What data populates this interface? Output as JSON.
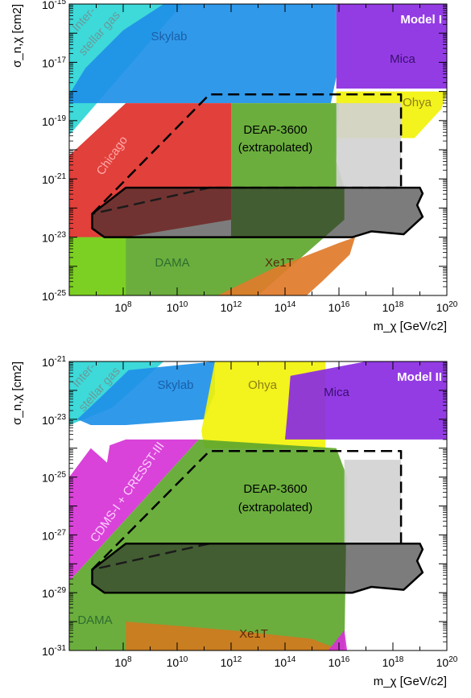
{
  "chart_data": [
    {
      "type": "area",
      "title": "Model I",
      "xlabel": "m_χ [GeV/c²]",
      "ylabel": "σ_n,χ [cm²]",
      "xscale": "log",
      "yscale": "log",
      "xlim": [
        1000000.0,
        1e+20
      ],
      "ylim": [
        1e-25,
        1e-15
      ],
      "x_tick_labels": [
        "10^8",
        "10^10",
        "10^12",
        "10^14",
        "10^16",
        "10^18",
        "10^20"
      ],
      "y_tick_labels": [
        "10^-25",
        "10^-23",
        "10^-21",
        "10^-19",
        "10^-17",
        "10^-15"
      ],
      "regions": [
        {
          "name": "Inter-stellar gas",
          "label_lines": [
            "Inter-",
            "stellar gas"
          ],
          "color": "#2ed6d6",
          "points": [
            [
              6,
              -16.5
            ],
            [
              6,
              -15
            ],
            [
              10.2,
              -15
            ],
            [
              6,
              -19.5
            ],
            [
              6,
              -18
            ]
          ]
        },
        {
          "name": "Skylab",
          "color": "#1e90e8",
          "points": [
            [
              6,
              -18.1
            ],
            [
              6.6,
              -17.2
            ],
            [
              8,
              -15.9
            ],
            [
              9.5,
              -15
            ],
            [
              15.9,
              -15
            ],
            [
              15.9,
              -17.4
            ],
            [
              15.9,
              -17.5
            ],
            [
              15.7,
              -18.4
            ],
            [
              6,
              -18.4
            ]
          ]
        },
        {
          "name": "Mica",
          "color": "#8a2be2",
          "points": [
            [
              15.9,
              -15
            ],
            [
              20,
              -15
            ],
            [
              20,
              -17.9
            ],
            [
              15.9,
              -17.9
            ]
          ]
        },
        {
          "name": "Ohya",
          "color": "#f2f20a",
          "points": [
            [
              15.9,
              -18.0
            ],
            [
              20,
              -18.0
            ],
            [
              19.8,
              -18.6
            ],
            [
              18.8,
              -19.6
            ],
            [
              15.9,
              -19.6
            ]
          ]
        },
        {
          "name": "Chicago",
          "color": "#e0302a",
          "points": [
            [
              6,
              -23
            ],
            [
              6,
              -20.2
            ],
            [
              8.1,
              -18.4
            ],
            [
              12,
              -18.4
            ],
            [
              12,
              -22.4
            ],
            [
              8.1,
              -23
            ]
          ]
        },
        {
          "name": "DEAP-3600 (extrapolated)",
          "label_lines": [
            "DEAP-3600",
            "(extrapolated)"
          ],
          "color": "#5ea72e",
          "points": [
            [
              6,
              -23
            ],
            [
              6,
              -25
            ],
            [
              13,
              -25
            ],
            [
              16.2,
              -22.4
            ],
            [
              16.2,
              -21.3
            ],
            [
              15.9,
              -20.4
            ],
            [
              16.0,
              -18.4
            ],
            [
              12,
              -18.4
            ],
            [
              12,
              -23
            ]
          ]
        },
        {
          "name": "DAMA",
          "color": "#7ed321",
          "points": [
            [
              6,
              -23
            ],
            [
              8.1,
              -23
            ],
            [
              8.1,
              -25
            ],
            [
              6,
              -25
            ]
          ]
        },
        {
          "name": "Xe1T",
          "color": "#e07b2a",
          "points": [
            [
              11.5,
              -25
            ],
            [
              13.5,
              -24.1
            ],
            [
              16.0,
              -23.2
            ],
            [
              16.6,
              -23.0
            ],
            [
              16.4,
              -23.6
            ],
            [
              15.4,
              -24.5
            ],
            [
              14.8,
              -25
            ]
          ]
        },
        {
          "name": "light-grey",
          "color": "#d3d3d3",
          "points": [
            [
              15.9,
              -18.4
            ],
            [
              18.3,
              -18.4
            ],
            [
              18.3,
              -21.3
            ],
            [
              15.9,
              -21.3
            ]
          ]
        }
      ],
      "outlines": [
        {
          "name": "DEAP-3600 (extrapolated)",
          "style": "dashed",
          "points": [
            [
              6.85,
              -22.2
            ],
            [
              11.2,
              -18.1
            ],
            [
              18.3,
              -18.1
            ],
            [
              18.3,
              -21.3
            ],
            [
              11.2,
              -21.3
            ]
          ]
        },
        {
          "name": "DEAP-3600",
          "style": "solid",
          "fill": "#2b2b2b",
          "points": [
            [
              6.85,
              -22.2
            ],
            [
              8.1,
              -21.3
            ],
            [
              19.0,
              -21.3
            ],
            [
              19.1,
              -21.5
            ],
            [
              18.9,
              -21.9
            ],
            [
              19.1,
              -22.3
            ],
            [
              18.4,
              -22.9
            ],
            [
              17.2,
              -22.8
            ],
            [
              16.5,
              -23.0
            ],
            [
              7.3,
              -23.0
            ],
            [
              6.85,
              -22.7
            ]
          ]
        }
      ],
      "labels": [
        {
          "text": "Skylab",
          "color": "#1a5fa8"
        },
        {
          "text": "Mica",
          "color": "#3a0f6e"
        },
        {
          "text": "Ohya",
          "color": "#8c7f16"
        },
        {
          "text": "Chicago",
          "color": "#ffaaaa"
        },
        {
          "text": "DEAP-3600",
          "color": "#000000"
        },
        {
          "text": "(extrapolated)",
          "color": "#000000"
        },
        {
          "text": "DAMA",
          "color": "#2e6e2e"
        },
        {
          "text": "Xe1T",
          "color": "#5a2a08"
        }
      ]
    },
    {
      "type": "area",
      "title": "Model II",
      "xlabel": "m_χ [GeV/c²]",
      "ylabel": "σ_n,χ [cm²]",
      "xscale": "log",
      "yscale": "log",
      "xlim": [
        1000000.0,
        1e+20
      ],
      "ylim": [
        1e-31,
        1e-21
      ],
      "x_tick_labels": [
        "10^8",
        "10^10",
        "10^12",
        "10^14",
        "10^16",
        "10^18",
        "10^20"
      ],
      "y_tick_labels": [
        "10^-31",
        "10^-29",
        "10^-27",
        "10^-25",
        "10^-23",
        "10^-21"
      ],
      "regions": [
        {
          "name": "Inter-stellar gas",
          "label_lines": [
            "Inter-",
            "stellar gas"
          ],
          "color": "#2ed6d6",
          "points": [
            [
              6,
              -23.2
            ],
            [
              6,
              -21
            ],
            [
              9.5,
              -21
            ],
            [
              7.6,
              -22.6
            ]
          ]
        },
        {
          "name": "Skylab",
          "color": "#1e90e8",
          "points": [
            [
              6.3,
              -23
            ],
            [
              7.2,
              -22.2
            ],
            [
              8.2,
              -21.3
            ],
            [
              11.4,
              -21
            ],
            [
              11.4,
              -22.1
            ],
            [
              11.0,
              -23.0
            ],
            [
              8.1,
              -23.2
            ],
            [
              6.8,
              -23.2
            ]
          ]
        },
        {
          "name": "Ohya",
          "color": "#f2f20a",
          "points": [
            [
              11.4,
              -21
            ],
            [
              15.5,
              -21
            ],
            [
              15.5,
              -24.0
            ],
            [
              11.0,
              -24.0
            ],
            [
              10.9,
              -23.4
            ]
          ]
        },
        {
          "name": "Mica",
          "color": "#8a2be2",
          "points": [
            [
              14.2,
              -21.5
            ],
            [
              17.0,
              -21
            ],
            [
              20,
              -21
            ],
            [
              20,
              -23.7
            ],
            [
              14.0,
              -23.7
            ],
            [
              14.1,
              -22.7
            ]
          ]
        },
        {
          "name": "CDMS-I + CRESST-III",
          "color": "#d633d6",
          "points": [
            [
              6,
              -25.0
            ],
            [
              6.8,
              -24.0
            ],
            [
              7.4,
              -24.5
            ],
            [
              7.5,
              -23.9
            ],
            [
              8.1,
              -23.7
            ],
            [
              10.8,
              -23.7
            ],
            [
              6,
              -28.6
            ]
          ]
        },
        {
          "name": "DEAP-3600 (extrapolated)",
          "label_lines": [
            "DEAP-3600",
            "(extrapolated)"
          ],
          "color": "#5ea72e",
          "points": [
            [
              6,
              -28.6
            ],
            [
              10.8,
              -23.7
            ],
            [
              15.9,
              -24.0
            ],
            [
              16.3,
              -25.0
            ],
            [
              16.2,
              -31
            ],
            [
              6,
              -31
            ]
          ]
        },
        {
          "name": "light-grey",
          "color": "#d3d3d3",
          "points": [
            [
              16.2,
              -24.4
            ],
            [
              18.3,
              -24.4
            ],
            [
              18.3,
              -27.3
            ],
            [
              16.2,
              -27.3
            ]
          ]
        },
        {
          "name": "Xe1T",
          "color": "#d07a1e",
          "points": [
            [
              8.1,
              -30.0
            ],
            [
              12,
              -30.3
            ],
            [
              15.0,
              -30.6
            ],
            [
              16.1,
              -31
            ],
            [
              8.1,
              -31
            ]
          ]
        },
        {
          "name": "magenta-bottom",
          "color": "#d633d6",
          "points": [
            [
              15.6,
              -31
            ],
            [
              16.2,
              -30.3
            ],
            [
              16.3,
              -31
            ]
          ]
        }
      ],
      "outlines": [
        {
          "name": "DEAP-3600 (extrapolated)",
          "style": "dashed",
          "points": [
            [
              6.85,
              -28.2
            ],
            [
              11.2,
              -24.1
            ],
            [
              18.3,
              -24.1
            ],
            [
              18.3,
              -27.3
            ],
            [
              11.2,
              -27.3
            ]
          ]
        },
        {
          "name": "DEAP-3600",
          "style": "solid",
          "fill": "#2b2b2b",
          "points": [
            [
              6.85,
              -28.2
            ],
            [
              8.1,
              -27.3
            ],
            [
              19.0,
              -27.3
            ],
            [
              19.1,
              -27.5
            ],
            [
              18.9,
              -27.9
            ],
            [
              19.1,
              -28.3
            ],
            [
              18.4,
              -28.9
            ],
            [
              17.2,
              -28.8
            ],
            [
              16.5,
              -29.0
            ],
            [
              7.3,
              -29.0
            ],
            [
              6.85,
              -28.7
            ]
          ]
        }
      ],
      "labels": [
        {
          "text": "Skylab",
          "color": "#1a5fa8"
        },
        {
          "text": "Ohya",
          "color": "#8c7f16"
        },
        {
          "text": "Mica",
          "color": "#3a0f6e"
        },
        {
          "text": "CDMS-I + CRESST-III",
          "color": "#ffd0ff"
        },
        {
          "text": "DEAP-3600",
          "color": "#000000"
        },
        {
          "text": "(extrapolated)",
          "color": "#000000"
        },
        {
          "text": "DAMA",
          "color": "#2e6e2e"
        },
        {
          "text": "Xe1T",
          "color": "#5a2a08"
        }
      ]
    }
  ]
}
